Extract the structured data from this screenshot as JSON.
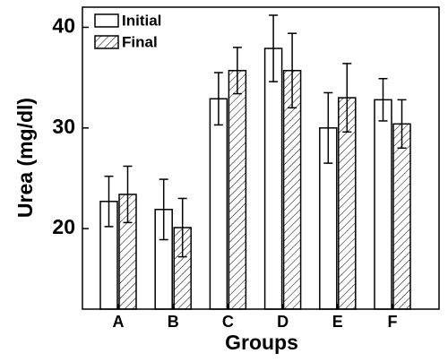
{
  "chart_data": {
    "type": "bar",
    "x_label": "Groups",
    "y_label": "Urea (mg/dl)",
    "categories": [
      "A",
      "B",
      "C",
      "D",
      "E",
      "F"
    ],
    "series": [
      {
        "name": "Initial",
        "color": "#ffffff",
        "pattern": "none",
        "values": [
          22.7,
          21.9,
          32.9,
          37.9,
          30.0,
          32.8
        ],
        "errors": [
          2.5,
          3.0,
          2.6,
          3.3,
          3.5,
          2.1
        ]
      },
      {
        "name": "Final",
        "color": "#ffffff",
        "pattern": "hatch",
        "values": [
          23.4,
          20.1,
          35.7,
          35.7,
          33.0,
          30.4
        ],
        "errors": [
          2.8,
          2.9,
          2.3,
          3.7,
          3.4,
          2.4
        ]
      }
    ],
    "ylim": [
      12,
      42
    ],
    "yticks": [
      20,
      30,
      40
    ],
    "legend": "top-left"
  }
}
